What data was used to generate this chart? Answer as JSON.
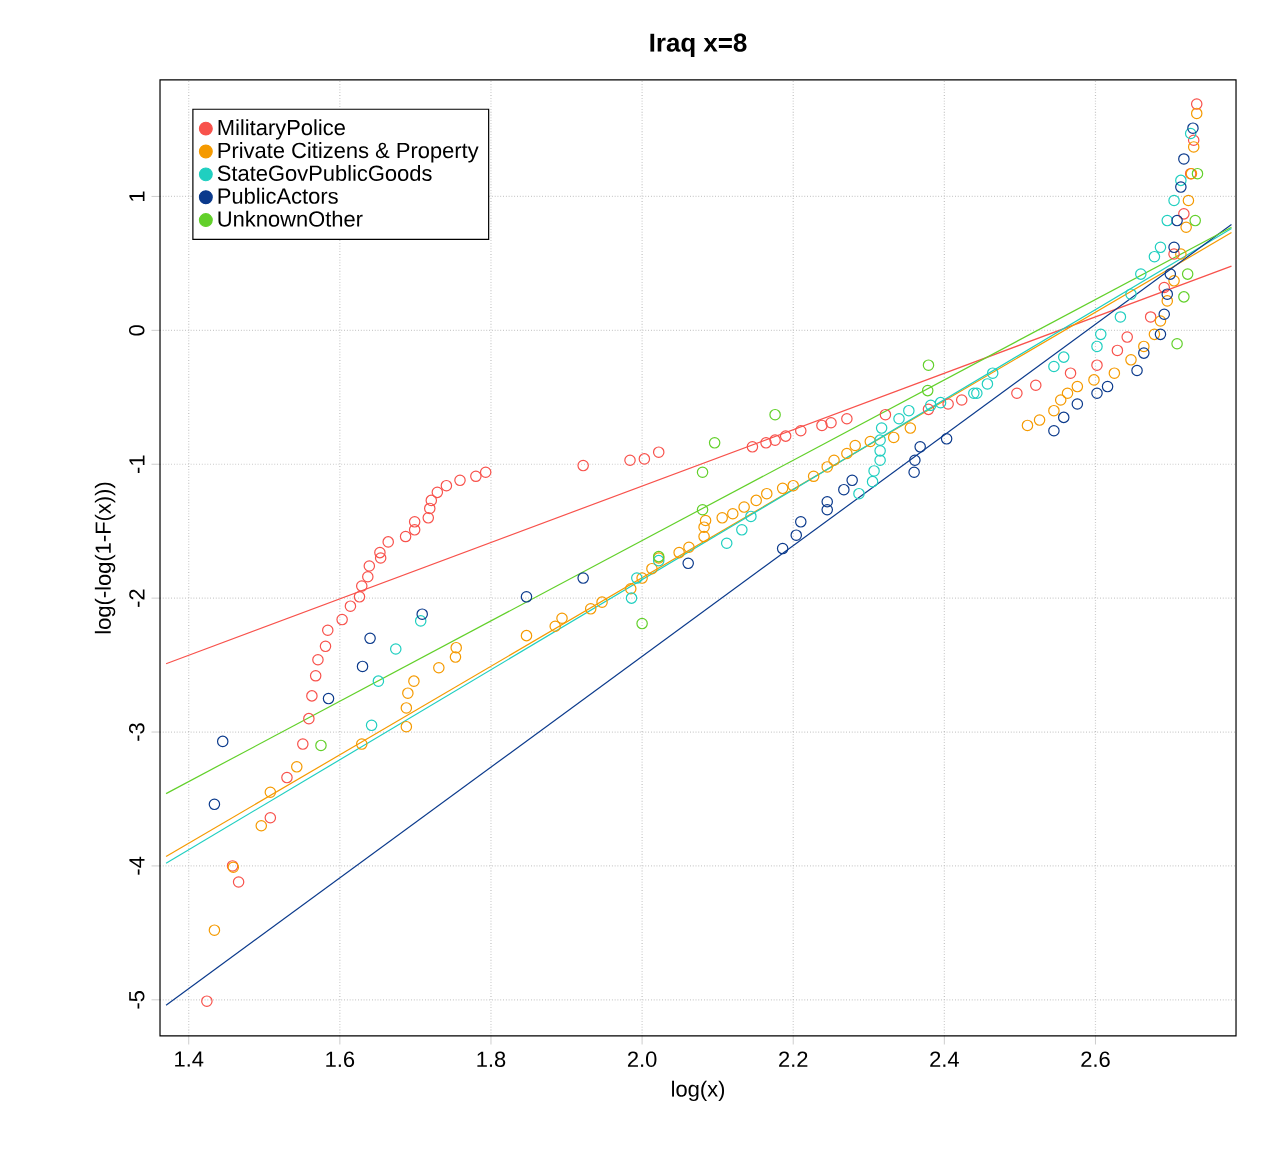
{
  "chart_data": {
    "type": "scatter",
    "title": "Iraq x=8",
    "xlabel": "log(x)",
    "ylabel": "log(-log(1-F(x)))",
    "xlim": [
      1.362,
      2.786
    ],
    "ylim": [
      -5.27,
      1.87
    ],
    "xticks": [
      {
        "value": 1.4,
        "label": "1.4"
      },
      {
        "value": 1.6,
        "label": "1.6"
      },
      {
        "value": 1.8,
        "label": "1.8"
      },
      {
        "value": 2.0,
        "label": "2.0"
      },
      {
        "value": 2.2,
        "label": "2.2"
      },
      {
        "value": 2.4,
        "label": "2.4"
      },
      {
        "value": 2.6,
        "label": "2.6"
      }
    ],
    "yticks": [
      -5,
      -4,
      -3,
      -2,
      -1,
      0,
      1
    ],
    "grid": true,
    "legend": "top left",
    "marker": "circle",
    "series": [
      {
        "name": "MilitaryPolice",
        "color": "#f8524c",
        "x": [
          1.424,
          1.466,
          1.458,
          1.508,
          1.53,
          1.551,
          1.559,
          1.563,
          1.568,
          1.571,
          1.581,
          1.584,
          1.603,
          1.614,
          1.626,
          1.629,
          1.637,
          1.639,
          1.654,
          1.653,
          1.664,
          1.687,
          1.699,
          1.699,
          1.717,
          1.719,
          1.721,
          1.729,
          1.741,
          1.759,
          1.78,
          1.793,
          1.922,
          1.984,
          2.003,
          2.022,
          2.146,
          2.164,
          2.176,
          2.19,
          2.21,
          2.238,
          2.25,
          2.271,
          2.322,
          2.379,
          2.405,
          2.423,
          2.496,
          2.521,
          2.567,
          2.602,
          2.629,
          2.642,
          2.673,
          2.691,
          2.704,
          2.717,
          2.726,
          2.73,
          2.734
        ],
        "values": [
          -5.01,
          -4.12,
          -4.0,
          -3.64,
          -3.34,
          -3.09,
          -2.9,
          -2.73,
          -2.58,
          -2.46,
          -2.36,
          -2.24,
          -2.16,
          -2.06,
          -1.99,
          -1.91,
          -1.84,
          -1.76,
          -1.7,
          -1.66,
          -1.58,
          -1.54,
          -1.49,
          -1.43,
          -1.4,
          -1.33,
          -1.27,
          -1.21,
          -1.16,
          -1.12,
          -1.09,
          -1.06,
          -1.01,
          -0.97,
          -0.96,
          -0.91,
          -0.87,
          -0.84,
          -0.82,
          -0.79,
          -0.75,
          -0.71,
          -0.69,
          -0.66,
          -0.63,
          -0.59,
          -0.55,
          -0.52,
          -0.47,
          -0.41,
          -0.32,
          -0.26,
          -0.15,
          -0.05,
          0.1,
          0.32,
          0.57,
          0.87,
          1.17,
          1.42,
          1.69
        ]
      },
      {
        "name": "Private Citizens & Property",
        "color": "#f59a00",
        "x": [
          1.434,
          1.459,
          1.496,
          1.508,
          1.543,
          1.629,
          1.688,
          1.688,
          1.69,
          1.698,
          1.731,
          1.753,
          1.754,
          1.847,
          1.885,
          1.894,
          1.932,
          1.947,
          1.985,
          2.0,
          2.013,
          2.022,
          2.049,
          2.062,
          2.082,
          2.082,
          2.084,
          2.106,
          2.12,
          2.135,
          2.151,
          2.165,
          2.186,
          2.2,
          2.227,
          2.245,
          2.254,
          2.271,
          2.282,
          2.302,
          2.333,
          2.355,
          2.51,
          2.526,
          2.545,
          2.554,
          2.563,
          2.576,
          2.598,
          2.625,
          2.647,
          2.664,
          2.678,
          2.686,
          2.695,
          2.704,
          2.713,
          2.72,
          2.723,
          2.727,
          2.73,
          2.734
        ],
        "values": [
          -4.48,
          -4.01,
          -3.7,
          -3.45,
          -3.26,
          -3.09,
          -2.96,
          -2.82,
          -2.71,
          -2.62,
          -2.52,
          -2.44,
          -2.37,
          -2.28,
          -2.21,
          -2.15,
          -2.08,
          -2.03,
          -1.93,
          -1.85,
          -1.78,
          -1.7,
          -1.66,
          -1.62,
          -1.54,
          -1.47,
          -1.42,
          -1.4,
          -1.37,
          -1.32,
          -1.27,
          -1.22,
          -1.18,
          -1.16,
          -1.09,
          -1.02,
          -0.97,
          -0.92,
          -0.86,
          -0.83,
          -0.8,
          -0.73,
          -0.71,
          -0.67,
          -0.6,
          -0.52,
          -0.47,
          -0.42,
          -0.37,
          -0.32,
          -0.22,
          -0.12,
          -0.03,
          0.07,
          0.22,
          0.37,
          0.57,
          0.77,
          0.97,
          1.17,
          1.37,
          1.62
        ]
      },
      {
        "name": "StateGovPublicGoods",
        "color": "#20cfc0",
        "x": [
          1.642,
          1.651,
          1.674,
          1.707,
          1.986,
          1.993,
          2.022,
          2.112,
          2.132,
          2.144,
          2.287,
          2.305,
          2.307,
          2.315,
          2.315,
          2.315,
          2.317,
          2.34,
          2.353,
          2.382,
          2.395,
          2.439,
          2.443,
          2.457,
          2.464,
          2.545,
          2.558,
          2.602,
          2.607,
          2.633,
          2.647,
          2.66,
          2.678,
          2.686,
          2.695,
          2.704,
          2.713,
          2.726
        ],
        "values": [
          -2.95,
          -2.62,
          -2.38,
          -2.17,
          -2.0,
          -1.85,
          -1.72,
          -1.59,
          -1.49,
          -1.39,
          -1.22,
          -1.13,
          -1.05,
          -0.97,
          -0.9,
          -0.82,
          -0.73,
          -0.66,
          -0.6,
          -0.56,
          -0.54,
          -0.47,
          -0.47,
          -0.4,
          -0.32,
          -0.27,
          -0.2,
          -0.12,
          -0.03,
          0.1,
          0.27,
          0.42,
          0.55,
          0.62,
          0.82,
          0.97,
          1.12,
          1.47
        ]
      },
      {
        "name": "PublicActors",
        "color": "#0b3a8c",
        "x": [
          1.434,
          1.445,
          1.585,
          1.63,
          1.64,
          1.709,
          1.847,
          1.922,
          2.061,
          2.186,
          2.204,
          2.21,
          2.245,
          2.245,
          2.267,
          2.278,
          2.36,
          2.361,
          2.368,
          2.403,
          2.545,
          2.558,
          2.576,
          2.602,
          2.616,
          2.655,
          2.664,
          2.686,
          2.691,
          2.695,
          2.699,
          2.704,
          2.708,
          2.713,
          2.717,
          2.729
        ],
        "values": [
          -3.54,
          -3.07,
          -2.75,
          -2.51,
          -2.3,
          -2.12,
          -1.99,
          -1.85,
          -1.74,
          -1.63,
          -1.53,
          -1.43,
          -1.34,
          -1.28,
          -1.19,
          -1.12,
          -1.06,
          -0.97,
          -0.87,
          -0.81,
          -0.75,
          -0.65,
          -0.55,
          -0.47,
          -0.42,
          -0.3,
          -0.17,
          -0.03,
          0.12,
          0.27,
          0.42,
          0.62,
          0.82,
          1.07,
          1.28,
          1.51
        ]
      },
      {
        "name": "UnknownOther",
        "color": "#62d02a",
        "x": [
          1.575,
          2.0,
          2.022,
          2.08,
          2.08,
          2.096,
          2.176,
          2.378,
          2.379,
          2.708,
          2.717,
          2.722,
          2.732,
          2.735
        ],
        "values": [
          -3.1,
          -2.19,
          -1.69,
          -1.34,
          -1.06,
          -0.84,
          -0.63,
          -0.45,
          -0.26,
          -0.1,
          0.25,
          0.42,
          0.82,
          1.17
        ]
      },
      {
        "type": "line",
        "marker": "none",
        "color": "#f8524c",
        "x": [
          1.37,
          2.78
        ],
        "values": [
          -2.49,
          0.48
        ]
      },
      {
        "type": "line",
        "marker": "none",
        "color": "#f59a00",
        "x": [
          1.37,
          2.78
        ],
        "values": [
          -3.93,
          0.73
        ]
      },
      {
        "type": "line",
        "marker": "none",
        "color": "#20cfc0",
        "x": [
          1.37,
          2.78
        ],
        "values": [
          -3.98,
          0.76
        ]
      },
      {
        "type": "line",
        "marker": "none",
        "color": "#0b3a8c",
        "x": [
          1.37,
          2.78
        ],
        "values": [
          -5.04,
          0.79
        ]
      },
      {
        "type": "line",
        "marker": "none",
        "color": "#62d02a",
        "x": [
          1.37,
          2.78
        ],
        "values": [
          -3.46,
          0.77
        ]
      }
    ]
  }
}
